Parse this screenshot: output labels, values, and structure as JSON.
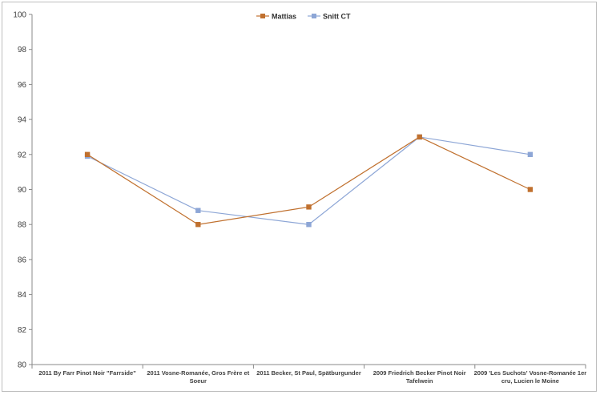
{
  "chart_data": {
    "type": "line",
    "title": "",
    "xlabel": "",
    "ylabel": "",
    "ylim": [
      80,
      100
    ],
    "y_ticks": [
      80,
      82,
      84,
      86,
      88,
      90,
      92,
      94,
      96,
      98,
      100
    ],
    "grid": false,
    "legend_position": "top-center",
    "categories": [
      [
        "2011 By Farr Pinot Noir \"Farrside\""
      ],
      [
        "2011 Vosne-Romanée, Gros Frère et",
        "Soeur"
      ],
      [
        "2011 Becker, St Paul, Spätburgunder"
      ],
      [
        "2009 Friedrich Becker Pinot Noir",
        "Tafelwein"
      ],
      [
        "2009 'Les Suchots' Vosne-Romanée 1er",
        "cru, Lucien le Moine"
      ]
    ],
    "series": [
      {
        "name": "Mattias",
        "color": "#c0702e",
        "values": [
          92,
          88,
          89,
          93,
          90
        ]
      },
      {
        "name": "Snitt CT",
        "color": "#8da6d6",
        "values": [
          91.9,
          88.8,
          88,
          93,
          92
        ]
      }
    ]
  }
}
